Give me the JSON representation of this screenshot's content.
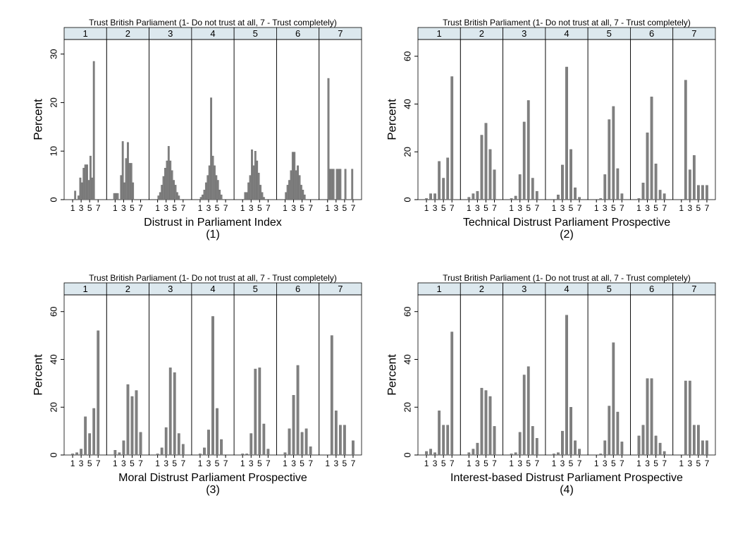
{
  "chart_data": [
    {
      "type": "histogram",
      "title": "Trust British Parliament (1- Do not trust at all, 7 - Trust completely)",
      "xlabel": "Distrust in Parliament Index",
      "caption": "(1)",
      "ylabel": "Percent",
      "color": "#808080",
      "bins": [
        0.6,
        1.0,
        1.4,
        1.8,
        2.2,
        2.6,
        3.0,
        3.4,
        3.8,
        4.2,
        4.6,
        5.0,
        5.4,
        5.8,
        6.2,
        6.6,
        7.0,
        7.4
      ],
      "xlim": [
        -1,
        9
      ],
      "xticks": [
        1,
        3,
        5,
        7
      ],
      "ylim": [
        0,
        33
      ],
      "yticks": [
        0,
        10,
        20,
        30
      ],
      "series": [
        {
          "name": "1",
          "values": [
            0,
            0,
            1.8,
            0,
            0.8,
            4.5,
            3.5,
            6.5,
            7.2,
            7.2,
            4,
            9,
            4.5,
            28.5,
            0,
            0,
            0
          ]
        },
        {
          "name": "2",
          "values": [
            1.3,
            1.3,
            1.3,
            0,
            5,
            12,
            3.5,
            8.5,
            11.8,
            7.5,
            7.5,
            3.5,
            0,
            0,
            0,
            0,
            0
          ]
        },
        {
          "name": "3",
          "values": [
            0,
            0.8,
            1.5,
            3,
            4.8,
            6.5,
            8,
            11,
            8,
            6,
            4,
            3,
            1.5,
            0.8,
            0,
            0,
            0
          ]
        },
        {
          "name": "4",
          "values": [
            0,
            0.5,
            1,
            2,
            3.5,
            5,
            7,
            21,
            9,
            7,
            5,
            4,
            2,
            1,
            0,
            0,
            0
          ]
        },
        {
          "name": "5",
          "values": [
            0,
            0,
            1.5,
            1.5,
            3.5,
            5,
            10.3,
            7,
            10,
            8,
            5.5,
            3,
            1.5,
            0.5,
            0,
            0,
            0
          ]
        },
        {
          "name": "6",
          "values": [
            0,
            1.5,
            3,
            4,
            6,
            9.8,
            9.8,
            6,
            7,
            5,
            3,
            2,
            1,
            0,
            0,
            0,
            0
          ]
        },
        {
          "name": "7",
          "values": [
            0,
            25,
            6.3,
            6.3,
            6.3,
            0,
            6.3,
            6.3,
            6.3,
            0,
            0,
            6.3,
            0,
            0,
            0,
            6.3,
            0
          ]
        }
      ]
    },
    {
      "type": "histogram",
      "title": "Trust British Parliament (1- Do not trust at all, 7 - Trust completely)",
      "xlabel": "Technical Distrust Parliament Prospective",
      "caption": "(2)",
      "ylabel": "Percent",
      "color": "#808080",
      "bins": [
        0.5,
        1.5,
        2.5,
        3.5,
        4.5,
        5.5,
        6.5,
        7.5
      ],
      "xlim": [
        -1,
        9
      ],
      "xticks": [
        1,
        3,
        5,
        7
      ],
      "ylim": [
        0,
        67
      ],
      "yticks": [
        0,
        20,
        40,
        60
      ],
      "series": [
        {
          "name": "1",
          "values": [
            0.5,
            2.5,
            2.5,
            16,
            9,
            17.5,
            51.5
          ]
        },
        {
          "name": "2",
          "values": [
            1,
            2.5,
            3.5,
            27,
            32,
            21,
            12.5
          ]
        },
        {
          "name": "3",
          "values": [
            0.5,
            1.5,
            10.5,
            32.5,
            41.5,
            9,
            3.5
          ]
        },
        {
          "name": "4",
          "values": [
            0,
            2,
            14.5,
            55.5,
            21,
            5,
            1
          ]
        },
        {
          "name": "5",
          "values": [
            0,
            0.5,
            10.5,
            33.5,
            39,
            13,
            2.5
          ]
        },
        {
          "name": "6",
          "values": [
            0.5,
            7,
            28,
            43,
            15,
            4,
            2.5
          ]
        },
        {
          "name": "7",
          "values": [
            0,
            50,
            12.5,
            18.5,
            6,
            6,
            6
          ]
        }
      ]
    },
    {
      "type": "histogram",
      "title": "Trust British Parliament (1- Do not trust at all, 7 - Trust completely)",
      "xlabel": "Moral Distrust Parliament Prospective",
      "caption": "(3)",
      "ylabel": "Percent",
      "color": "#808080",
      "bins": [
        0.5,
        1.5,
        2.5,
        3.5,
        4.5,
        5.5,
        6.5,
        7.5
      ],
      "xlim": [
        -1,
        9
      ],
      "xticks": [
        1,
        3,
        5,
        7
      ],
      "ylim": [
        0,
        67
      ],
      "yticks": [
        0,
        20,
        40,
        60
      ],
      "series": [
        {
          "name": "1",
          "values": [
            0.5,
            1,
            2.5,
            16,
            9,
            19.5,
            52
          ]
        },
        {
          "name": "2",
          "values": [
            2,
            1,
            6,
            29.5,
            24.5,
            27,
            9.5
          ]
        },
        {
          "name": "3",
          "values": [
            0.5,
            3,
            11.5,
            36.5,
            34.5,
            9,
            4.5
          ]
        },
        {
          "name": "4",
          "values": [
            0.5,
            3,
            10.5,
            58,
            19.5,
            6.5,
            0
          ]
        },
        {
          "name": "5",
          "values": [
            0.5,
            0.5,
            9,
            36,
            36.5,
            13,
            2.5
          ]
        },
        {
          "name": "6",
          "values": [
            1,
            11,
            25,
            37.5,
            9.5,
            11,
            3.5
          ]
        },
        {
          "name": "7",
          "values": [
            0,
            50,
            18.5,
            12.5,
            12.5,
            0,
            6
          ]
        }
      ]
    },
    {
      "type": "histogram",
      "title": "Trust British Parliament (1- Do not trust at all, 7 - Trust completely)",
      "xlabel": "Interest-based Distrust Parliament Prospective",
      "caption": "(4)",
      "ylabel": "Percent",
      "color": "#808080",
      "bins": [
        0.5,
        1.5,
        2.5,
        3.5,
        4.5,
        5.5,
        6.5,
        7.5
      ],
      "xlim": [
        -1,
        9
      ],
      "xticks": [
        1,
        3,
        5,
        7
      ],
      "ylim": [
        0,
        67
      ],
      "yticks": [
        0,
        20,
        40,
        60
      ],
      "series": [
        {
          "name": "1",
          "values": [
            1.5,
            2.5,
            1,
            18.5,
            12.5,
            12.5,
            51.5
          ]
        },
        {
          "name": "2",
          "values": [
            1,
            2.5,
            5,
            28,
            27,
            24.5,
            12
          ]
        },
        {
          "name": "3",
          "values": [
            0.5,
            1,
            9.5,
            33.5,
            37,
            12,
            7
          ]
        },
        {
          "name": "4",
          "values": [
            0.5,
            1,
            10,
            58.5,
            20,
            6,
            2.5
          ]
        },
        {
          "name": "5",
          "values": [
            0,
            0.5,
            6,
            20.5,
            47,
            18,
            5.5
          ]
        },
        {
          "name": "6",
          "values": [
            8,
            12.5,
            32,
            32,
            8,
            5,
            1.5
          ]
        },
        {
          "name": "7",
          "values": [
            0,
            31,
            31,
            12.5,
            12.5,
            6,
            6
          ]
        }
      ]
    }
  ]
}
